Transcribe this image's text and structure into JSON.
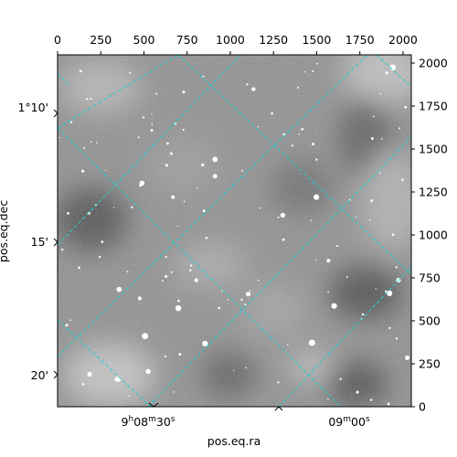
{
  "chart_data": {
    "type": "image",
    "colormap": "grayscale",
    "pixel_x": {
      "range": [
        0,
        2048
      ],
      "ticks": [
        0,
        250,
        500,
        750,
        1000,
        1250,
        1500,
        1750,
        2000
      ],
      "tick_labels": [
        "0",
        "250",
        "500",
        "750",
        "1000",
        "1250",
        "1500",
        "1750",
        "2000"
      ],
      "position": "top"
    },
    "pixel_y": {
      "range": [
        0,
        2048
      ],
      "ticks": [
        0,
        250,
        500,
        750,
        1000,
        1250,
        1500,
        1750,
        2000
      ],
      "tick_labels": [
        "0",
        "250",
        "500",
        "750",
        "1000",
        "1250",
        "1500",
        "1750",
        "2000"
      ],
      "position": "right"
    },
    "ra": {
      "label": "pos.eq.ra",
      "tick_labels": [
        {
          "h": "9",
          "m": "08",
          "s": "30"
        },
        {
          "h": "",
          "m": "09",
          "s": "00"
        }
      ]
    },
    "dec": {
      "label": "pos.eq.dec",
      "tick_labels": [
        "1°10'",
        "15'",
        "20'"
      ]
    },
    "grid": true,
    "grid_color": "#22cccc"
  }
}
